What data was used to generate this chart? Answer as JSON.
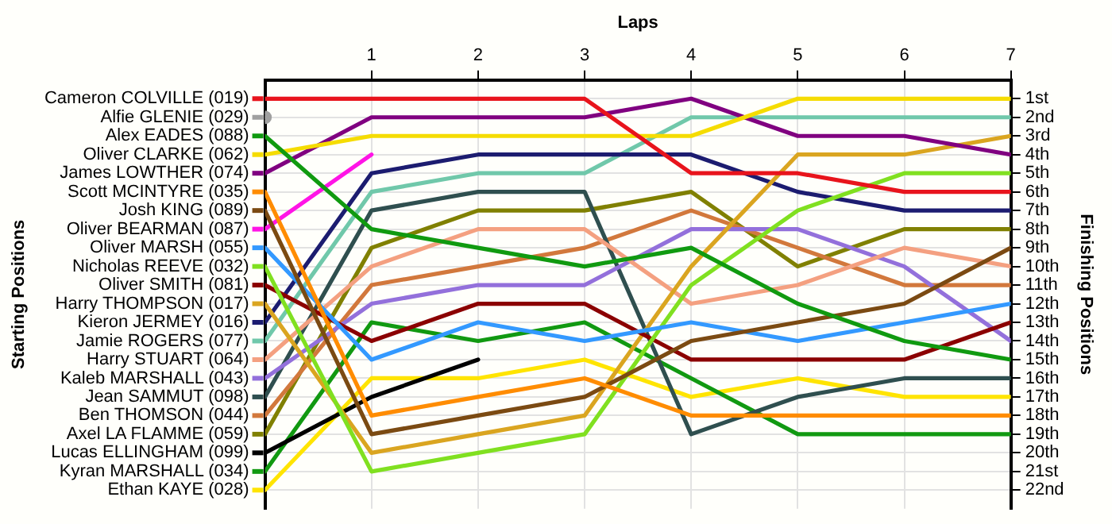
{
  "chart_data": {
    "type": "line",
    "xlabel": "Laps",
    "ylabel": "Finishing Positions",
    "x": [
      0,
      1,
      2,
      3,
      4,
      5,
      6,
      7
    ],
    "xlim": [
      0,
      7
    ],
    "xticks": [
      1,
      2,
      3,
      4,
      5,
      6,
      7
    ],
    "ylim": [
      23,
      0
    ],
    "yticks": [
      {
        "value": 1,
        "label": "1st"
      },
      {
        "value": 2,
        "label": "2nd"
      },
      {
        "value": 3,
        "label": "3rd"
      },
      {
        "value": 4,
        "label": "4th"
      },
      {
        "value": 5,
        "label": "5th"
      },
      {
        "value": 6,
        "label": "6th"
      },
      {
        "value": 7,
        "label": "7th"
      },
      {
        "value": 8,
        "label": "8th"
      },
      {
        "value": 9,
        "label": "9th"
      },
      {
        "value": 10,
        "label": "10th"
      },
      {
        "value": 11,
        "label": "11th"
      },
      {
        "value": 12,
        "label": "12th"
      },
      {
        "value": 13,
        "label": "13th"
      },
      {
        "value": 14,
        "label": "14th"
      },
      {
        "value": 15,
        "label": "15th"
      },
      {
        "value": 16,
        "label": "16th"
      },
      {
        "value": 17,
        "label": "17th"
      },
      {
        "value": 18,
        "label": "18th"
      },
      {
        "value": 19,
        "label": "19th"
      },
      {
        "value": 20,
        "label": "20th"
      },
      {
        "value": 21,
        "label": "21st"
      },
      {
        "value": 22,
        "label": "22nd"
      }
    ],
    "annotations": [
      "Starting Positions"
    ],
    "grid": true,
    "legend": "left",
    "line_style": "solid",
    "series": [
      {
        "name": "Cameron COLVILLE (019)",
        "color": "#e8141c",
        "values": [
          1,
          1,
          1,
          1,
          5,
          5,
          6,
          6
        ]
      },
      {
        "name": "Alfie GLENIE (029)",
        "color": "#a0a0a0",
        "marker": "circle",
        "values": [
          2,
          null,
          null,
          null,
          null,
          null,
          null,
          null
        ]
      },
      {
        "name": "Alex EADES (088)",
        "color": "#109a10",
        "values": [
          3,
          8,
          9,
          10,
          9,
          12,
          14,
          15
        ]
      },
      {
        "name": "Oliver CLARKE (062)",
        "color": "#f5dc00",
        "values": [
          4,
          3,
          3,
          3,
          3,
          1,
          1,
          1
        ]
      },
      {
        "name": "James LOWTHER (074)",
        "color": "#800080",
        "values": [
          5,
          2,
          2,
          2,
          1,
          3,
          3,
          4
        ]
      },
      {
        "name": "Scott MCINTYRE (035)",
        "color": "#ff8c00",
        "values": [
          6,
          18,
          17,
          16,
          18,
          18,
          18,
          18
        ]
      },
      {
        "name": "Josh KING (089)",
        "color": "#7b4a12",
        "values": [
          7,
          19,
          18,
          17,
          14,
          13,
          12,
          9
        ]
      },
      {
        "name": "Oliver BEARMAN (087)",
        "color": "#ff14e6",
        "values": [
          8,
          4,
          null,
          null,
          null,
          null,
          null,
          null
        ]
      },
      {
        "name": "Oliver MARSH (055)",
        "color": "#3399ff",
        "values": [
          9,
          15,
          13,
          14,
          13,
          14,
          13,
          12
        ]
      },
      {
        "name": "Nicholas REEVE (032)",
        "color": "#80e020",
        "values": [
          10,
          21,
          20,
          19,
          11,
          7,
          5,
          5
        ]
      },
      {
        "name": "Oliver SMITH (081)",
        "color": "#8b0000",
        "values": [
          11,
          14,
          12,
          12,
          15,
          15,
          15,
          13
        ]
      },
      {
        "name": "Harry THOMPSON (017)",
        "color": "#daa520",
        "values": [
          12,
          20,
          19,
          18,
          10,
          4,
          4,
          3
        ]
      },
      {
        "name": "Kieron JERMEY (016)",
        "color": "#1c1c70",
        "values": [
          13,
          5,
          4,
          4,
          4,
          6,
          7,
          7
        ]
      },
      {
        "name": "Jamie ROGERS (077)",
        "color": "#70c8aa",
        "values": [
          14,
          6,
          5,
          5,
          2,
          2,
          2,
          2
        ]
      },
      {
        "name": "Harry STUART (064)",
        "color": "#f4a080",
        "values": [
          15,
          10,
          8,
          8,
          12,
          11,
          9,
          10
        ]
      },
      {
        "name": "Kaleb MARSHALL (043)",
        "color": "#9370db",
        "values": [
          16,
          12,
          11,
          11,
          8,
          8,
          10,
          14
        ]
      },
      {
        "name": "Jean SAMMUT (098)",
        "color": "#2f4f4f",
        "values": [
          17,
          7,
          6,
          6,
          19,
          17,
          16,
          16
        ]
      },
      {
        "name": "Ben THOMSON (044)",
        "color": "#d2783c",
        "values": [
          18,
          11,
          10,
          9,
          7,
          9,
          11,
          11
        ]
      },
      {
        "name": "Axel LA FLAMME (059)",
        "color": "#808000",
        "values": [
          19,
          9,
          7,
          7,
          6,
          10,
          8,
          8
        ]
      },
      {
        "name": "Lucas ELLINGHAM (099)",
        "color": "#000000",
        "values": [
          20,
          17,
          15,
          null,
          null,
          null,
          null,
          null
        ]
      },
      {
        "name": "Kyran MARSHALL (034)",
        "color": "#119911",
        "values": [
          21,
          13,
          14,
          13,
          16,
          19,
          19,
          19
        ]
      },
      {
        "name": "Ethan KAYE (028)",
        "color": "#ffe400",
        "values": [
          22,
          16,
          16,
          15,
          17,
          16,
          17,
          17
        ]
      }
    ]
  }
}
